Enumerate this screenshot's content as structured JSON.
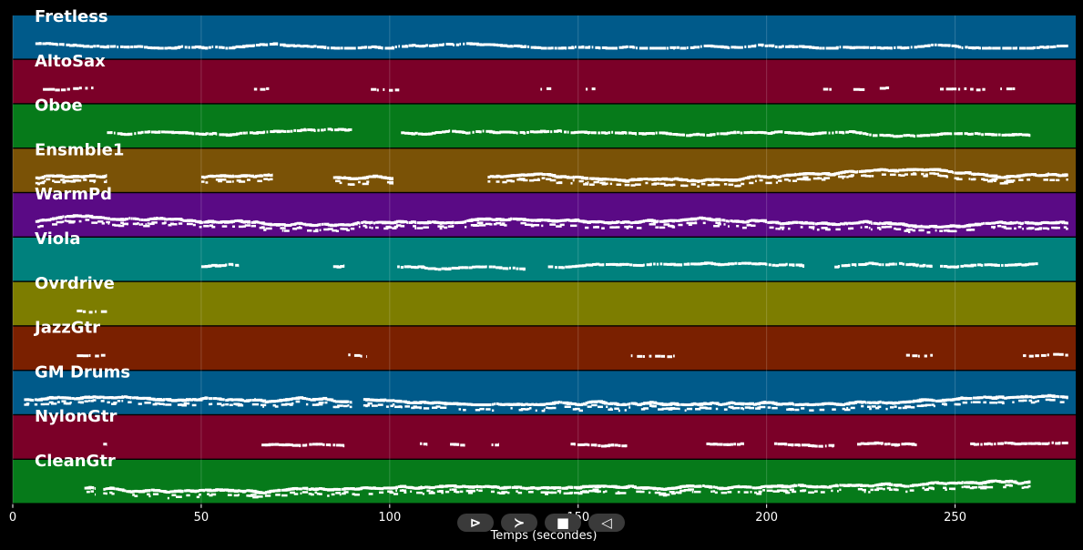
{
  "chart_data": {
    "type": "piano-roll",
    "xlabel": "Temps (secondes)",
    "xlim": [
      0,
      282
    ],
    "xticks": [
      0,
      50,
      100,
      150,
      200,
      250
    ],
    "grid": true,
    "tracks": [
      {
        "name": "Fretless",
        "color": "#005a8a",
        "segments": [
          [
            6,
            280
          ]
        ],
        "density": "medium"
      },
      {
        "name": "AltoSax",
        "color": "#7b0028",
        "segments": [
          [
            8,
            22
          ],
          [
            64,
            68
          ],
          [
            95,
            103
          ],
          [
            140,
            143
          ],
          [
            152,
            155
          ],
          [
            215,
            218
          ],
          [
            223,
            226
          ],
          [
            230,
            233
          ],
          [
            246,
            258
          ],
          [
            262,
            266
          ]
        ],
        "density": "sparse"
      },
      {
        "name": "Oboe",
        "color": "#067a1a",
        "segments": [
          [
            25,
            90
          ],
          [
            103,
            270
          ]
        ],
        "density": "medium"
      },
      {
        "name": "Ensmble1",
        "color": "#7a5206",
        "segments": [
          [
            6,
            25
          ],
          [
            50,
            69
          ],
          [
            85,
            101
          ],
          [
            126,
            280
          ]
        ],
        "density": "dense"
      },
      {
        "name": "WarmPd",
        "color": "#5a0a85",
        "segments": [
          [
            6,
            280
          ]
        ],
        "density": "dense"
      },
      {
        "name": "Viola",
        "color": "#00817d",
        "segments": [
          [
            50,
            60
          ],
          [
            85,
            88
          ],
          [
            102,
            136
          ],
          [
            142,
            210
          ],
          [
            218,
            244
          ],
          [
            246,
            272
          ]
        ],
        "density": "medium"
      },
      {
        "name": "Ovrdrive",
        "color": "#7d7d00",
        "segments": [
          [
            17,
            25
          ]
        ],
        "density": "sparse"
      },
      {
        "name": "JazzGtr",
        "color": "#7a2000",
        "segments": [
          [
            17,
            25
          ],
          [
            89,
            94
          ],
          [
            164,
            176
          ],
          [
            237,
            245
          ],
          [
            268,
            280
          ]
        ],
        "density": "sparse"
      },
      {
        "name": "GM Drums",
        "color": "#005a8a",
        "segments": [
          [
            3,
            90
          ],
          [
            93,
            280
          ]
        ],
        "density": "dense"
      },
      {
        "name": "NylonGtr",
        "color": "#7b0028",
        "segments": [
          [
            24,
            25
          ],
          [
            66,
            88
          ],
          [
            108,
            110
          ],
          [
            116,
            120
          ],
          [
            127,
            129
          ],
          [
            148,
            163
          ],
          [
            184,
            194
          ],
          [
            202,
            218
          ],
          [
            224,
            240
          ],
          [
            254,
            280
          ]
        ],
        "density": "medium"
      },
      {
        "name": "CleanGtr",
        "color": "#067a1a",
        "segments": [
          [
            19,
            22
          ],
          [
            24,
            270
          ]
        ],
        "density": "dense"
      }
    ]
  },
  "controls": {
    "play_forward": "⊳",
    "next": "≻",
    "stop": "■",
    "previous": "◁"
  }
}
